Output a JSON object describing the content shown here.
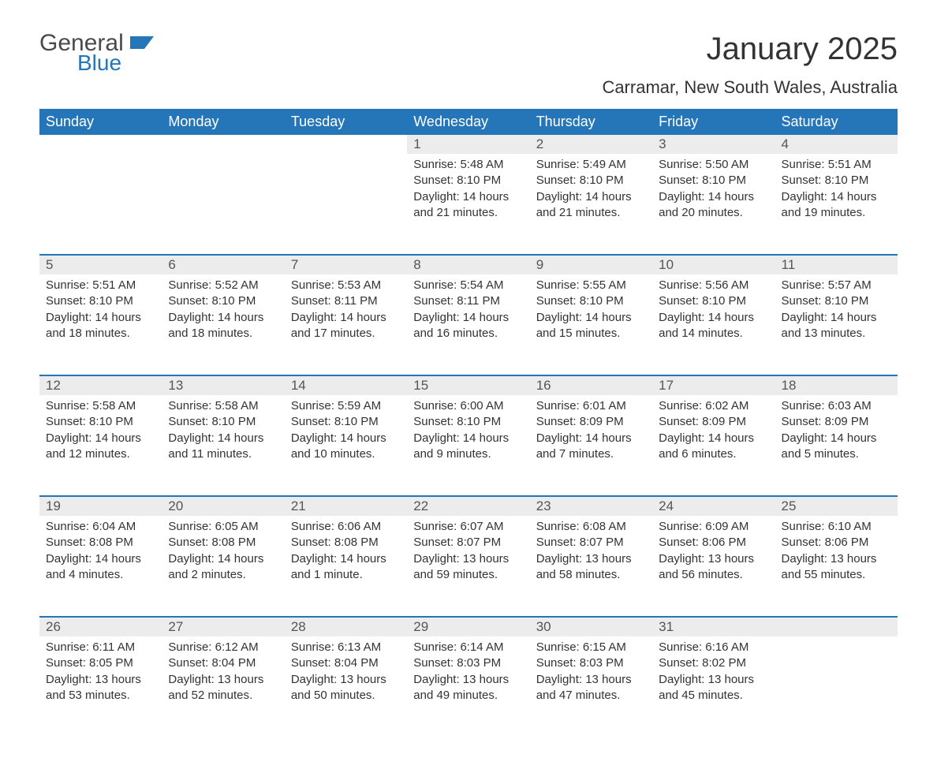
{
  "brand": {
    "general": "General",
    "blue": "Blue"
  },
  "title": "January 2025",
  "subtitle": "Carramar, New South Wales, Australia",
  "colors": {
    "header_bg": "#2576b9",
    "header_text": "#ffffff",
    "daynum_bg": "#ececec",
    "row_border": "#2576b9",
    "body_text": "#333333",
    "logo_gray": "#4a4a4a",
    "logo_blue": "#2576b9"
  },
  "weekdays": [
    "Sunday",
    "Monday",
    "Tuesday",
    "Wednesday",
    "Thursday",
    "Friday",
    "Saturday"
  ],
  "weeks": [
    [
      null,
      null,
      null,
      {
        "n": "1",
        "sunrise": "5:48 AM",
        "sunset": "8:10 PM",
        "daylight": "14 hours and 21 minutes."
      },
      {
        "n": "2",
        "sunrise": "5:49 AM",
        "sunset": "8:10 PM",
        "daylight": "14 hours and 21 minutes."
      },
      {
        "n": "3",
        "sunrise": "5:50 AM",
        "sunset": "8:10 PM",
        "daylight": "14 hours and 20 minutes."
      },
      {
        "n": "4",
        "sunrise": "5:51 AM",
        "sunset": "8:10 PM",
        "daylight": "14 hours and 19 minutes."
      }
    ],
    [
      {
        "n": "5",
        "sunrise": "5:51 AM",
        "sunset": "8:10 PM",
        "daylight": "14 hours and 18 minutes."
      },
      {
        "n": "6",
        "sunrise": "5:52 AM",
        "sunset": "8:10 PM",
        "daylight": "14 hours and 18 minutes."
      },
      {
        "n": "7",
        "sunrise": "5:53 AM",
        "sunset": "8:11 PM",
        "daylight": "14 hours and 17 minutes."
      },
      {
        "n": "8",
        "sunrise": "5:54 AM",
        "sunset": "8:11 PM",
        "daylight": "14 hours and 16 minutes."
      },
      {
        "n": "9",
        "sunrise": "5:55 AM",
        "sunset": "8:10 PM",
        "daylight": "14 hours and 15 minutes."
      },
      {
        "n": "10",
        "sunrise": "5:56 AM",
        "sunset": "8:10 PM",
        "daylight": "14 hours and 14 minutes."
      },
      {
        "n": "11",
        "sunrise": "5:57 AM",
        "sunset": "8:10 PM",
        "daylight": "14 hours and 13 minutes."
      }
    ],
    [
      {
        "n": "12",
        "sunrise": "5:58 AM",
        "sunset": "8:10 PM",
        "daylight": "14 hours and 12 minutes."
      },
      {
        "n": "13",
        "sunrise": "5:58 AM",
        "sunset": "8:10 PM",
        "daylight": "14 hours and 11 minutes."
      },
      {
        "n": "14",
        "sunrise": "5:59 AM",
        "sunset": "8:10 PM",
        "daylight": "14 hours and 10 minutes."
      },
      {
        "n": "15",
        "sunrise": "6:00 AM",
        "sunset": "8:10 PM",
        "daylight": "14 hours and 9 minutes."
      },
      {
        "n": "16",
        "sunrise": "6:01 AM",
        "sunset": "8:09 PM",
        "daylight": "14 hours and 7 minutes."
      },
      {
        "n": "17",
        "sunrise": "6:02 AM",
        "sunset": "8:09 PM",
        "daylight": "14 hours and 6 minutes."
      },
      {
        "n": "18",
        "sunrise": "6:03 AM",
        "sunset": "8:09 PM",
        "daylight": "14 hours and 5 minutes."
      }
    ],
    [
      {
        "n": "19",
        "sunrise": "6:04 AM",
        "sunset": "8:08 PM",
        "daylight": "14 hours and 4 minutes."
      },
      {
        "n": "20",
        "sunrise": "6:05 AM",
        "sunset": "8:08 PM",
        "daylight": "14 hours and 2 minutes."
      },
      {
        "n": "21",
        "sunrise": "6:06 AM",
        "sunset": "8:08 PM",
        "daylight": "14 hours and 1 minute."
      },
      {
        "n": "22",
        "sunrise": "6:07 AM",
        "sunset": "8:07 PM",
        "daylight": "13 hours and 59 minutes."
      },
      {
        "n": "23",
        "sunrise": "6:08 AM",
        "sunset": "8:07 PM",
        "daylight": "13 hours and 58 minutes."
      },
      {
        "n": "24",
        "sunrise": "6:09 AM",
        "sunset": "8:06 PM",
        "daylight": "13 hours and 56 minutes."
      },
      {
        "n": "25",
        "sunrise": "6:10 AM",
        "sunset": "8:06 PM",
        "daylight": "13 hours and 55 minutes."
      }
    ],
    [
      {
        "n": "26",
        "sunrise": "6:11 AM",
        "sunset": "8:05 PM",
        "daylight": "13 hours and 53 minutes."
      },
      {
        "n": "27",
        "sunrise": "6:12 AM",
        "sunset": "8:04 PM",
        "daylight": "13 hours and 52 minutes."
      },
      {
        "n": "28",
        "sunrise": "6:13 AM",
        "sunset": "8:04 PM",
        "daylight": "13 hours and 50 minutes."
      },
      {
        "n": "29",
        "sunrise": "6:14 AM",
        "sunset": "8:03 PM",
        "daylight": "13 hours and 49 minutes."
      },
      {
        "n": "30",
        "sunrise": "6:15 AM",
        "sunset": "8:03 PM",
        "daylight": "13 hours and 47 minutes."
      },
      {
        "n": "31",
        "sunrise": "6:16 AM",
        "sunset": "8:02 PM",
        "daylight": "13 hours and 45 minutes."
      },
      null
    ]
  ],
  "labels": {
    "sunrise": "Sunrise: ",
    "sunset": "Sunset: ",
    "daylight": "Daylight: "
  }
}
